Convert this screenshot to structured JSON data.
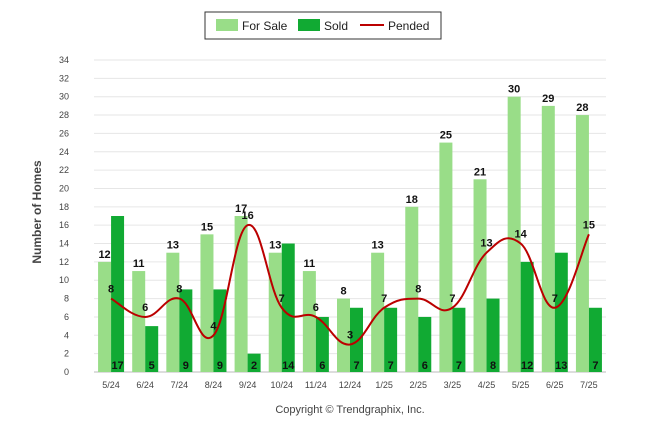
{
  "chart_data": {
    "type": "bar",
    "categories": [
      "5/24",
      "6/24",
      "7/24",
      "8/24",
      "9/24",
      "10/24",
      "11/24",
      "12/24",
      "1/25",
      "2/25",
      "3/25",
      "4/25",
      "5/25",
      "6/25",
      "7/25"
    ],
    "series": [
      {
        "name": "For Sale",
        "type": "bar",
        "color": "#99dd88",
        "values": [
          12,
          11,
          13,
          15,
          17,
          13,
          11,
          8,
          13,
          18,
          25,
          21,
          30,
          29,
          28
        ]
      },
      {
        "name": "Sold",
        "type": "bar",
        "color": "#11aa33",
        "values": [
          17,
          5,
          9,
          9,
          2,
          14,
          6,
          7,
          7,
          6,
          7,
          8,
          12,
          13,
          7
        ]
      },
      {
        "name": "Pended",
        "type": "line",
        "color": "#bb0000",
        "values": [
          8,
          6,
          8,
          4,
          16,
          7,
          6,
          3,
          7,
          8,
          7,
          13,
          14,
          7,
          15
        ]
      }
    ],
    "ylabel": "Number of Homes",
    "ylim": [
      0,
      34
    ],
    "yticks": [
      0,
      2,
      4,
      6,
      8,
      10,
      12,
      14,
      16,
      18,
      20,
      22,
      24,
      26,
      28,
      30,
      32,
      34
    ],
    "grid": true,
    "legend_position": "top-center"
  },
  "footer": {
    "copyright": "Copyright © Trendgraphix, Inc."
  }
}
